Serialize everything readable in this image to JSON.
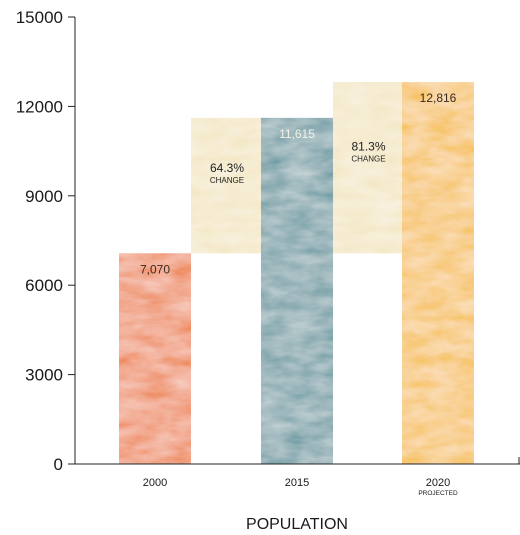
{
  "chart_data": {
    "type": "bar",
    "title": "",
    "xlabel": "POPULATION",
    "ylabel": "",
    "ylim": [
      0,
      15000
    ],
    "yticks": [
      "0",
      "3000",
      "6000",
      "9000",
      "12000",
      "15000"
    ],
    "categories": [
      {
        "label": "2000",
        "sublabel": ""
      },
      {
        "label": "2015",
        "sublabel": ""
      },
      {
        "label": "2020",
        "sublabel": "PROJECTED"
      }
    ],
    "values": [
      7070,
      11615,
      12816
    ],
    "value_labels": [
      "7,070",
      "11,615",
      "12,816"
    ],
    "bar_colors": [
      "#ef8a5b",
      "#6e9ca4",
      "#f7c15a"
    ],
    "bar_label_colors": [
      "#3a2a20",
      "#f4f1ea",
      "#3a2a20"
    ],
    "change_annotations": [
      {
        "percent": "64.3%",
        "label": "CHANGE",
        "from_index": 0,
        "to_index": 1,
        "color": "#f3e6c2"
      },
      {
        "percent": "81.3%",
        "label": "CHANGE",
        "from_index": 0,
        "to_index": 2,
        "color": "#f3e6c2"
      }
    ],
    "grid": false
  }
}
